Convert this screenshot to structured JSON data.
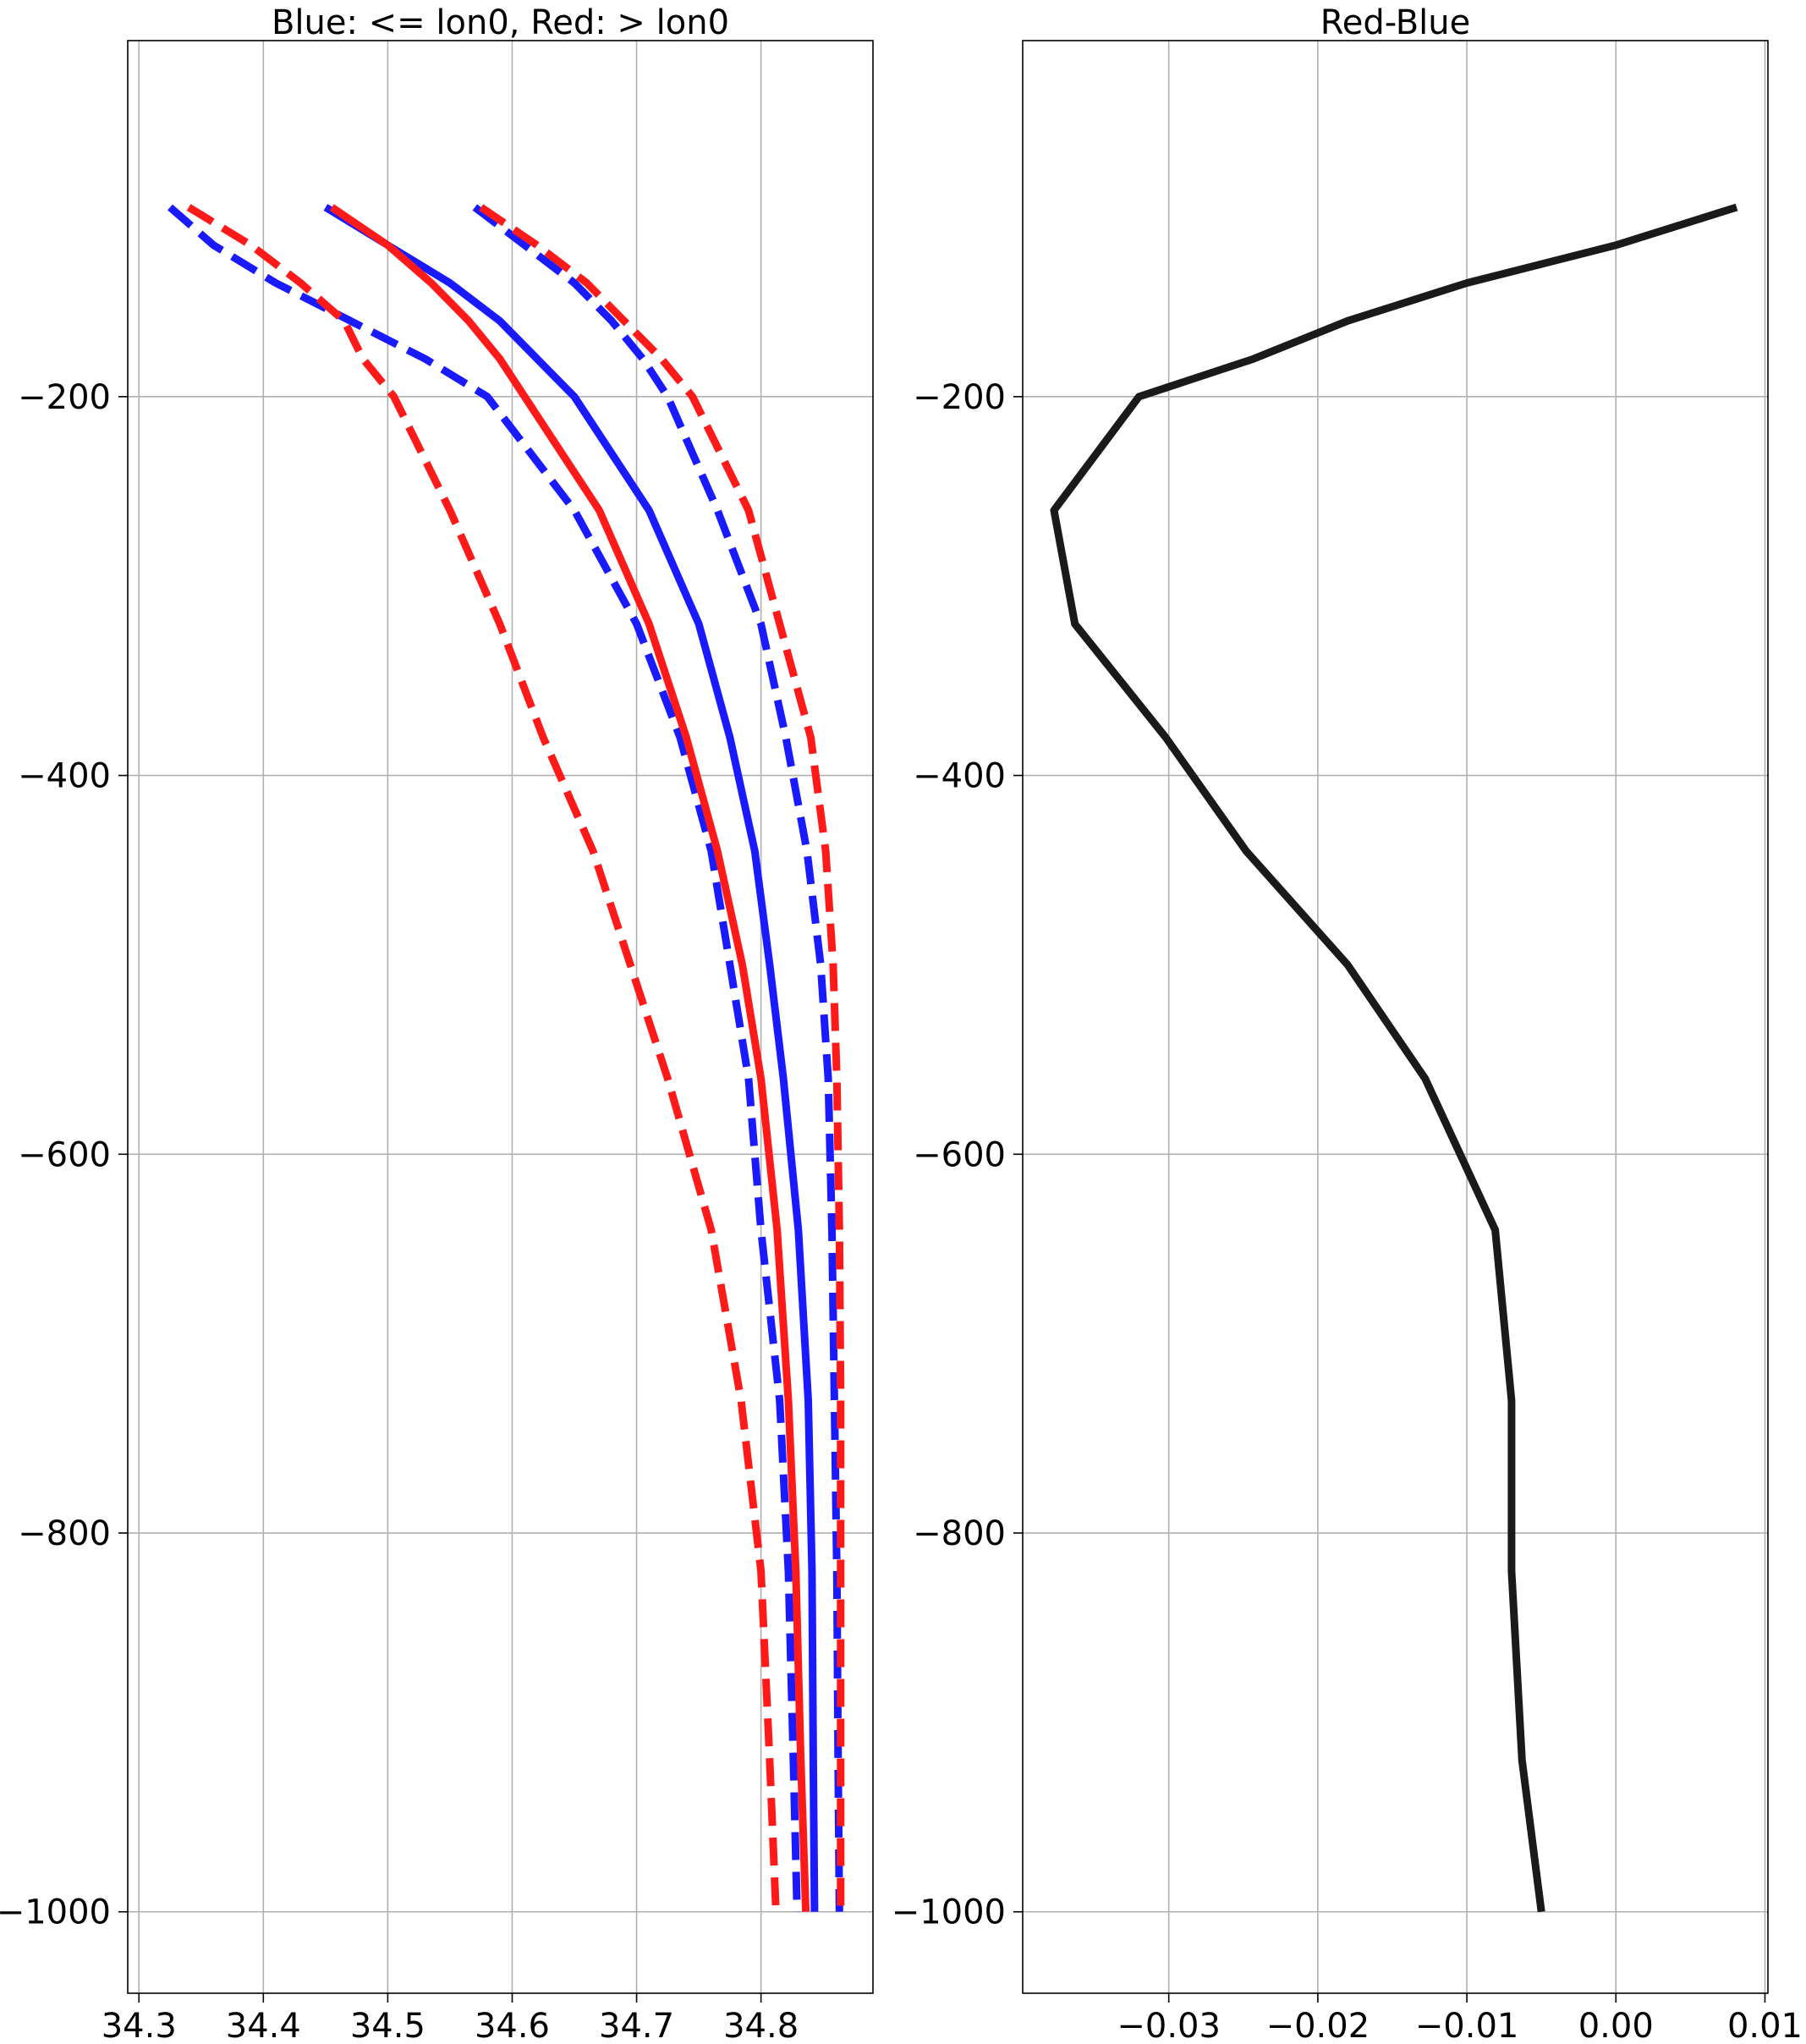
{
  "chart_data": [
    {
      "type": "line",
      "title": "Blue: <= lon0, Red: > lon0",
      "xlabel": "",
      "ylabel": "",
      "xlim": [
        34.291,
        34.89
      ],
      "ylim": [
        -1043,
        -12
      ],
      "grid": true,
      "xticks": [
        34.3,
        34.4,
        34.5,
        34.6,
        34.7,
        34.8
      ],
      "xtick_labels": [
        "34.3",
        "34.4",
        "34.5",
        "34.6",
        "34.7",
        "34.8"
      ],
      "yticks": [
        -200,
        -400,
        -600,
        -800,
        -1000
      ],
      "ytick_labels": [
        "−200",
        "−400",
        "−600",
        "−800",
        "−1000"
      ],
      "y": [
        -100,
        -120,
        -140,
        -160,
        -180,
        -200,
        -260,
        -320,
        -380,
        -440,
        -500,
        -560,
        -640,
        -730,
        -820,
        -920,
        -1000
      ],
      "series": [
        {
          "color": "#1a1aff",
          "style": "solid",
          "values": [
            34.45,
            34.5,
            34.55,
            34.59,
            34.62,
            34.65,
            34.71,
            34.75,
            34.775,
            34.795,
            34.807,
            34.818,
            34.83,
            34.838,
            34.841,
            34.842,
            34.843
          ]
        },
        {
          "color": "#1a1aff",
          "style": "dashed",
          "values": [
            34.325,
            34.36,
            34.41,
            34.47,
            34.53,
            34.58,
            34.65,
            34.7,
            34.735,
            34.76,
            34.775,
            34.79,
            34.8,
            34.815,
            34.822,
            34.826,
            34.829
          ]
        },
        {
          "color": "#1a1aff",
          "style": "dashed",
          "values": [
            34.57,
            34.61,
            34.65,
            34.68,
            34.705,
            34.725,
            34.765,
            34.8,
            34.82,
            34.837,
            34.848,
            34.854,
            34.857,
            34.859,
            34.861,
            34.862,
            34.863
          ]
        },
        {
          "color": "#ff1a1a",
          "style": "solid",
          "values": [
            34.455,
            34.5,
            34.535,
            34.565,
            34.59,
            34.61,
            34.67,
            34.71,
            34.74,
            34.765,
            34.785,
            34.8,
            34.813,
            34.822,
            34.828,
            34.832,
            34.836
          ]
        },
        {
          "color": "#ff1a1a",
          "style": "dashed",
          "values": [
            34.34,
            34.39,
            34.43,
            34.465,
            34.48,
            34.505,
            34.55,
            34.59,
            34.625,
            34.665,
            34.695,
            34.725,
            34.76,
            34.784,
            34.8,
            34.807,
            34.812
          ]
        },
        {
          "color": "#ff1a1a",
          "style": "dashed",
          "values": [
            34.575,
            34.62,
            34.66,
            34.69,
            34.72,
            34.745,
            34.79,
            34.815,
            34.84,
            34.852,
            34.858,
            34.861,
            34.863,
            34.864,
            34.864,
            34.864,
            34.864
          ]
        }
      ]
    },
    {
      "type": "line",
      "title": "Red-Blue",
      "xlabel": "",
      "ylabel": "",
      "xlim": [
        -0.0398,
        0.0102
      ],
      "ylim": [
        -1043,
        -12
      ],
      "grid": true,
      "xticks": [
        -0.03,
        -0.02,
        -0.01,
        0.0,
        0.01
      ],
      "xtick_labels": [
        "−0.03",
        "−0.02",
        "−0.01",
        "0.00",
        "0.01"
      ],
      "yticks": [
        -200,
        -400,
        -600,
        -800,
        -1000
      ],
      "ytick_labels": [
        "−200",
        "−400",
        "−600",
        "−800",
        "−1000"
      ],
      "series": [
        {
          "color": "#1a1a1a",
          "style": "solid",
          "x": [
            0.0081,
            0.0,
            -0.01,
            -0.018,
            -0.0243,
            -0.032,
            -0.0377,
            -0.0363,
            -0.0302,
            -0.0248,
            -0.018,
            -0.0128,
            -0.0081,
            -0.007,
            -0.007,
            -0.0063,
            -0.005
          ],
          "y": [
            -100,
            -120,
            -140,
            -160,
            -180,
            -200,
            -260,
            -320,
            -380,
            -440,
            -500,
            -560,
            -640,
            -730,
            -820,
            -920,
            -1000
          ]
        }
      ]
    }
  ]
}
